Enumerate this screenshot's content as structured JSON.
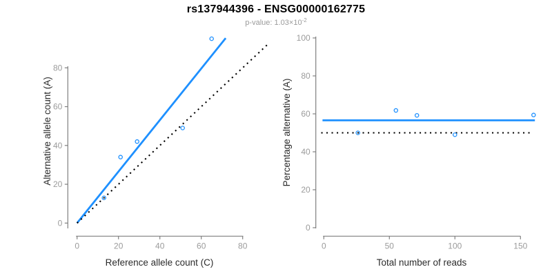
{
  "figure": {
    "title": "rs137944396 - ENSG00000162775",
    "subtitle_text": "p-value: 1.03×10",
    "subtitle_exponent": "-2"
  },
  "colors": {
    "accent_blue": "#1E90FF",
    "dotted_black": "#000000",
    "axis_line": "#7f7f7f",
    "tick_label": "#9b9b9b",
    "axis_title": "#2b2b2b",
    "background": "#ffffff"
  },
  "chart_data": [
    {
      "type": "scatter",
      "panel": "left",
      "xlabel": "Reference allele count (C)",
      "ylabel": "Alternative allele count (A)",
      "xticks": [
        0,
        20,
        40,
        60,
        80
      ],
      "yticks": [
        0,
        20,
        40,
        60,
        80
      ],
      "xlim": [
        0,
        93
      ],
      "ylim": [
        0,
        97
      ],
      "grid": false,
      "points": [
        [
          13,
          13
        ],
        [
          21,
          34
        ],
        [
          29,
          42
        ],
        [
          51,
          49
        ],
        [
          65,
          95
        ]
      ],
      "lines": [
        {
          "name": "fitted-ratio-line",
          "style": "solid",
          "x1": 0,
          "y1": 0,
          "x2": 71.8,
          "y2": 95.3
        },
        {
          "name": "identity-line",
          "style": "dotted",
          "x1": 0,
          "y1": 0,
          "x2": 92,
          "y2": 92
        }
      ]
    },
    {
      "type": "scatter",
      "panel": "right",
      "xlabel": "Total number of reads",
      "ylabel": "Percentage alternative (A)",
      "xticks": [
        0,
        50,
        100,
        150
      ],
      "yticks": [
        0,
        20,
        40,
        60,
        80,
        100
      ],
      "xlim": [
        0,
        163
      ],
      "ylim": [
        0,
        100
      ],
      "grid": false,
      "points": [
        [
          26,
          50.0
        ],
        [
          55,
          61.8
        ],
        [
          71,
          59.2
        ],
        [
          100,
          49.0
        ],
        [
          160,
          59.4
        ]
      ],
      "lines": [
        {
          "name": "mean-percentage-line",
          "style": "solid",
          "x1": -1,
          "y1": 56.6,
          "x2": 161,
          "y2": 56.6
        },
        {
          "name": "null-50-percent-line",
          "style": "dotted",
          "x1": -2,
          "y1": 50.0,
          "x2": 157,
          "y2": 50.0
        }
      ]
    }
  ]
}
